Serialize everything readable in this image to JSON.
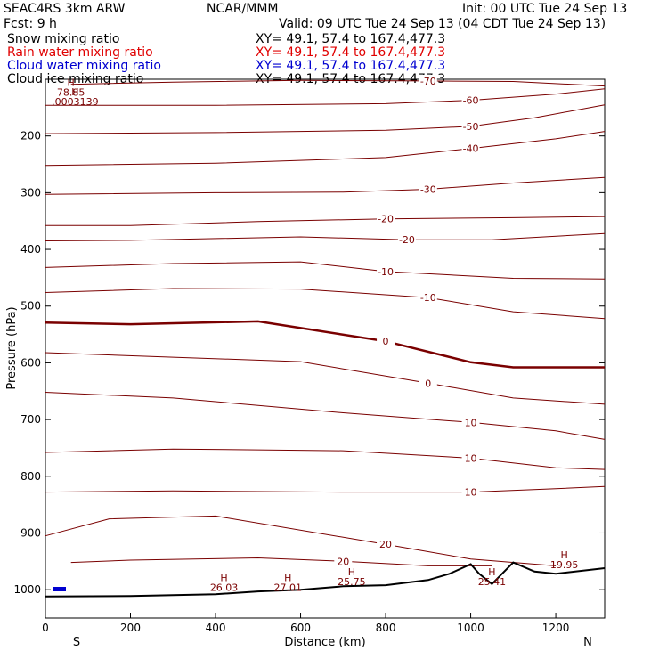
{
  "header": {
    "model": "SEAC4RS  3km ARW",
    "center": "NCAR/MMM",
    "init": "Init: 00 UTC Tue 24 Sep 13",
    "fcst": "Fcst:    9 h",
    "valid": "Valid: 09 UTC Tue 24 Sep 13 (04 CDT Tue 24 Sep 13)"
  },
  "fields": [
    {
      "label": "Snow mixing ratio",
      "xy": "XY=  49.1, 57.4 to 167.4,477.3",
      "color": "#000000"
    },
    {
      "label": "Rain water mixing ratio",
      "xy": "XY=  49.1, 57.4 to 167.4,477.3",
      "color": "#e00000"
    },
    {
      "label": "Cloud water mixing ratio",
      "xy": "XY=  49.1, 57.4 to 167.4,477.3",
      "color": "#0000d0"
    },
    {
      "label": "Cloud ice mixing ratio",
      "xy": "XY=  49.1, 57.4 to 167.4,477.3",
      "color": "#000000"
    }
  ],
  "chart_data": {
    "type": "line",
    "title": "",
    "xlabel": "Distance (km)",
    "ylabel": "Pressure (hPa)",
    "xlim": [
      0,
      1315
    ],
    "ylim": [
      1050,
      100
    ],
    "x_ticks": [
      0,
      200,
      400,
      600,
      800,
      1000,
      1200
    ],
    "y_ticks": [
      200,
      300,
      400,
      500,
      600,
      700,
      800,
      900,
      1000
    ],
    "y_tick_labels": [
      "200",
      "300",
      "400",
      "500",
      "600",
      "700",
      "800",
      "900",
      "1000"
    ],
    "x_ticks_labels": [
      "0",
      "200",
      "400",
      "600",
      "800",
      "1000",
      "1200"
    ],
    "x_end_labels": [
      "S",
      "N"
    ],
    "contour_color": "#7a0000",
    "series": [
      {
        "level": "-70",
        "x": [
          60,
          300,
          600,
          900,
          1100,
          1315
        ],
        "p": [
          109,
          105,
          102,
          103,
          104,
          112
        ]
      },
      {
        "level": "-60",
        "x": [
          0,
          400,
          800,
          1000,
          1200,
          1315
        ],
        "p": [
          146,
          146,
          143,
          137,
          126,
          117
        ]
      },
      {
        "level": "-50",
        "x": [
          0,
          400,
          800,
          1000,
          1150,
          1315
        ],
        "p": [
          196,
          194,
          190,
          183,
          168,
          145
        ]
      },
      {
        "level": "-40",
        "x": [
          0,
          400,
          800,
          1000,
          1200,
          1315
        ],
        "p": [
          252,
          248,
          238,
          222,
          205,
          192
        ]
      },
      {
        "level": "-30",
        "x": [
          0,
          400,
          700,
          900,
          1100,
          1315
        ],
        "p": [
          303,
          300,
          299,
          294,
          283,
          273
        ]
      },
      {
        "level": "-20",
        "x": [
          0,
          200,
          500,
          800,
          1100,
          1315
        ],
        "p": [
          358,
          358,
          351,
          346,
          344,
          342
        ]
      },
      {
        "level": "-20",
        "x": [
          0,
          200,
          600,
          850,
          1050,
          1315
        ],
        "p": [
          385,
          384,
          378,
          383,
          383,
          372
        ]
      },
      {
        "level": "-10",
        "x": [
          0,
          300,
          600,
          800,
          1100,
          1315
        ],
        "p": [
          432,
          425,
          422,
          439,
          451,
          452
        ]
      },
      {
        "level": "-10",
        "x": [
          0,
          300,
          600,
          900,
          1100,
          1315
        ],
        "p": [
          476,
          469,
          470,
          485,
          510,
          522
        ]
      },
      {
        "level": "0",
        "x": [
          0,
          200,
          500,
          800,
          1000,
          1100,
          1315
        ],
        "p": [
          529,
          532,
          527,
          562,
          599,
          608,
          608
        ]
      },
      {
        "level": "0",
        "x": [
          0,
          300,
          600,
          900,
          1100,
          1315
        ],
        "p": [
          582,
          590,
          598,
          636,
          662,
          673
        ]
      },
      {
        "level": "10",
        "x": [
          0,
          300,
          700,
          1000,
          1200,
          1315
        ],
        "p": [
          652,
          662,
          688,
          705,
          720,
          735
        ]
      },
      {
        "level": "10",
        "x": [
          0,
          300,
          700,
          1000,
          1200,
          1315
        ],
        "p": [
          758,
          752,
          755,
          768,
          785,
          788
        ]
      },
      {
        "level": "10",
        "x": [
          0,
          300,
          700,
          1000,
          1200,
          1315
        ],
        "p": [
          828,
          826,
          828,
          828,
          822,
          818
        ]
      },
      {
        "level": "20",
        "x": [
          0,
          150,
          400,
          800,
          1000,
          1200
        ],
        "p": [
          905,
          875,
          870,
          920,
          946,
          958
        ]
      },
      {
        "level": "20",
        "x": [
          60,
          200,
          500,
          700,
          900,
          1050
        ],
        "p": [
          952,
          948,
          944,
          950,
          958,
          958
        ]
      }
    ],
    "terrain": {
      "x": [
        0,
        200,
        400,
        500,
        600,
        700,
        800,
        900,
        950,
        1000,
        1020,
        1050,
        1100,
        1150,
        1200,
        1315
      ],
      "p": [
        1012,
        1011,
        1008,
        1003,
        1000,
        994,
        992,
        983,
        972,
        955,
        972,
        990,
        952,
        968,
        972,
        962
      ]
    },
    "highs": [
      {
        "label": "H",
        "value": "78.85",
        "x": 60,
        "p": 112
      },
      {
        "label": "H",
        "value": ".0003139",
        "x": 70,
        "p": 128
      },
      {
        "label": "H",
        "value": "26.03",
        "x": 420,
        "p": 985
      },
      {
        "label": "H",
        "value": "27.01",
        "x": 570,
        "p": 985
      },
      {
        "label": "H",
        "value": "25.75",
        "x": 720,
        "p": 975
      },
      {
        "label": "H",
        "value": "25.41",
        "x": 1050,
        "p": 975
      },
      {
        "label": "H",
        "value": "19.95",
        "x": 1220,
        "p": 945
      }
    ]
  }
}
